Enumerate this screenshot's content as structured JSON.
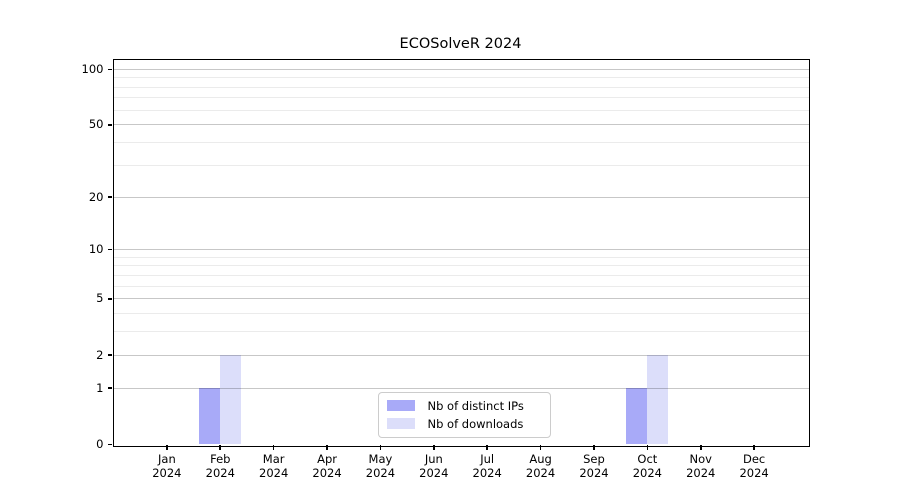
{
  "chart_data": {
    "type": "bar",
    "title": "ECOSolveR 2024",
    "categories": [
      [
        "Jan",
        "2024"
      ],
      [
        "Feb",
        "2024"
      ],
      [
        "Mar",
        "2024"
      ],
      [
        "Apr",
        "2024"
      ],
      [
        "May",
        "2024"
      ],
      [
        "Jun",
        "2024"
      ],
      [
        "Jul",
        "2024"
      ],
      [
        "Aug",
        "2024"
      ],
      [
        "Sep",
        "2024"
      ],
      [
        "Oct",
        "2024"
      ],
      [
        "Nov",
        "2024"
      ],
      [
        "Dec",
        "2024"
      ]
    ],
    "series": [
      {
        "name": "Nb of distinct IPs",
        "color": "#a8aaf8",
        "values": [
          0,
          1,
          0,
          0,
          0,
          0,
          0,
          0,
          0,
          1,
          0,
          0
        ]
      },
      {
        "name": "Nb of downloads",
        "color": "#dcdefa",
        "values": [
          0,
          2,
          0,
          0,
          0,
          0,
          0,
          0,
          0,
          2,
          0,
          0
        ]
      }
    ],
    "y_axis": {
      "scale": "log1p",
      "ticks": [
        0,
        1,
        2,
        5,
        10,
        20,
        50,
        100
      ],
      "minor_ticks": [
        3,
        4,
        6,
        7,
        8,
        9,
        30,
        40,
        60,
        70,
        80,
        90
      ],
      "ylim": [
        0,
        113
      ]
    },
    "x_axis": {
      "xlabel": "",
      "ylabel": ""
    },
    "legend": {
      "position": "lower center"
    },
    "grid": true
  }
}
